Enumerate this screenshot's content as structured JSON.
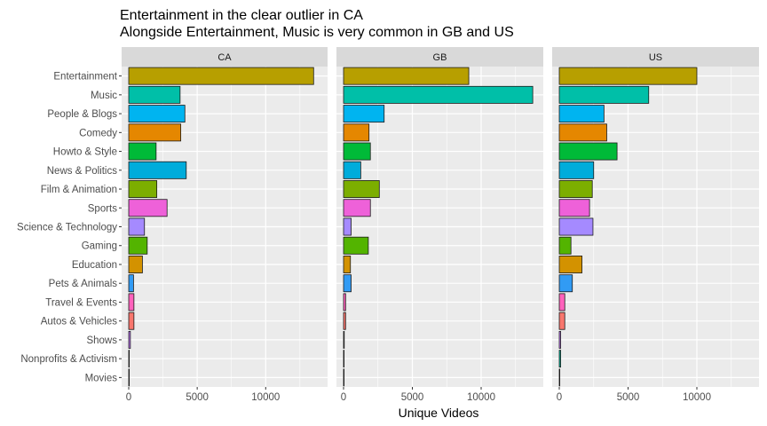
{
  "chart_data": {
    "type": "bar",
    "orientation": "horizontal",
    "facets": [
      "CA",
      "GB",
      "US"
    ],
    "title_lines": [
      "Entertainment in the clear outlier in CA",
      "Alongside Entertainment, Music is very common in GB and US"
    ],
    "xlabel": "Unique Videos",
    "ylabel": "",
    "xlim": [
      0,
      14000
    ],
    "xticks": [
      0,
      5000,
      10000
    ],
    "xtick_labels": [
      "0",
      "5000",
      "10000"
    ],
    "grid": true,
    "legend": "none",
    "categories": [
      "Entertainment",
      "Music",
      "People & Blogs",
      "Comedy",
      "Howto & Style",
      "News & Politics",
      "Film & Animation",
      "Sports",
      "Science & Technology",
      "Gaming",
      "Education",
      "Pets & Animals",
      "Travel & Events",
      "Autos & Vehicles",
      "Shows",
      "Nonprofits & Activism",
      "Movies"
    ],
    "colors": [
      "#B79F00",
      "#00BFA8",
      "#00B4F0",
      "#E58700",
      "#00BA38",
      "#00ACDB",
      "#7CAE00",
      "#EE61D9",
      "#A58AFF",
      "#53B400",
      "#D39200",
      "#319BF4",
      "#FF62BC",
      "#F8766D",
      "#C77CFF",
      "#00C1A3",
      "#B983FF"
    ],
    "series": [
      {
        "facet": "CA",
        "values": [
          13500,
          3750,
          4100,
          3800,
          2000,
          4200,
          2050,
          2800,
          1150,
          1350,
          1000,
          350,
          380,
          380,
          120,
          10,
          20
        ]
      },
      {
        "facet": "GB",
        "values": [
          9100,
          13750,
          2950,
          1850,
          1950,
          1250,
          2600,
          1950,
          550,
          1800,
          500,
          550,
          150,
          150,
          50,
          10,
          0
        ]
      },
      {
        "facet": "US",
        "values": [
          10000,
          6500,
          3250,
          3450,
          4200,
          2500,
          2400,
          2200,
          2450,
          850,
          1650,
          950,
          400,
          400,
          100,
          100,
          0
        ]
      }
    ]
  }
}
